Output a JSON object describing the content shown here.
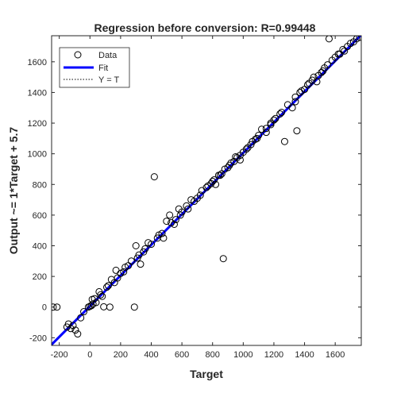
{
  "chart_data": {
    "type": "scatter",
    "title": "Regression before conversion: R=0.99448",
    "xlabel": "Target",
    "ylabel": "Output ~= 1*Target + 5.7",
    "xlim": [
      -250,
      1770
    ],
    "ylim": [
      -250,
      1770
    ],
    "xticks": [
      -200,
      0,
      200,
      400,
      600,
      800,
      1000,
      1200,
      1400,
      1600
    ],
    "yticks": [
      -200,
      0,
      200,
      400,
      600,
      800,
      1000,
      1200,
      1400,
      1600
    ],
    "grid": false,
    "legend_placement": "top-left",
    "fit": {
      "slope": 1,
      "intercept": 5.7
    },
    "series": [
      {
        "name": "Data",
        "marker": "open-circle",
        "color": "#000000",
        "points": [
          [
            -240,
            0
          ],
          [
            -215,
            0
          ],
          [
            -140,
            -110
          ],
          [
            -125,
            -140
          ],
          [
            -110,
            -120
          ],
          [
            -95,
            -150
          ],
          [
            -80,
            -175
          ],
          [
            -150,
            -130
          ],
          [
            -10,
            0
          ],
          [
            0,
            5
          ],
          [
            10,
            10
          ],
          [
            15,
            50
          ],
          [
            30,
            55
          ],
          [
            40,
            30
          ],
          [
            60,
            100
          ],
          [
            80,
            70
          ],
          [
            90,
            2
          ],
          [
            110,
            130
          ],
          [
            130,
            0
          ],
          [
            140,
            180
          ],
          [
            160,
            160
          ],
          [
            170,
            240
          ],
          [
            200,
            220
          ],
          [
            230,
            260
          ],
          [
            270,
            300
          ],
          [
            290,
            0
          ],
          [
            300,
            400
          ],
          [
            320,
            340
          ],
          [
            330,
            280
          ],
          [
            360,
            380
          ],
          [
            380,
            420
          ],
          [
            420,
            850
          ],
          [
            450,
            470
          ],
          [
            480,
            450
          ],
          [
            500,
            560
          ],
          [
            520,
            600
          ],
          [
            550,
            540
          ],
          [
            580,
            640
          ],
          [
            600,
            620
          ],
          [
            630,
            660
          ],
          [
            660,
            700
          ],
          [
            700,
            710
          ],
          [
            730,
            760
          ],
          [
            760,
            780
          ],
          [
            800,
            820
          ],
          [
            820,
            800
          ],
          [
            840,
            860
          ],
          [
            870,
            316
          ],
          [
            880,
            900
          ],
          [
            920,
            940
          ],
          [
            950,
            980
          ],
          [
            980,
            960
          ],
          [
            1000,
            1010
          ],
          [
            1030,
            1040
          ],
          [
            1060,
            1080
          ],
          [
            1090,
            1100
          ],
          [
            1120,
            1160
          ],
          [
            1150,
            1140
          ],
          [
            1180,
            1200
          ],
          [
            1210,
            1230
          ],
          [
            1240,
            1260
          ],
          [
            1270,
            1080
          ],
          [
            1290,
            1320
          ],
          [
            1320,
            1300
          ],
          [
            1340,
            1340
          ],
          [
            1350,
            1150
          ],
          [
            1370,
            1400
          ],
          [
            1400,
            1420
          ],
          [
            1430,
            1460
          ],
          [
            1460,
            1500
          ],
          [
            1490,
            1510
          ],
          [
            1520,
            1540
          ],
          [
            1550,
            1580
          ],
          [
            1560,
            1750
          ],
          [
            1580,
            1610
          ],
          [
            1620,
            1650
          ],
          [
            1650,
            1680
          ],
          [
            1680,
            1700
          ],
          [
            1700,
            1720
          ],
          [
            1720,
            1730
          ],
          [
            1740,
            1750
          ],
          [
            1760,
            1760
          ],
          [
            1420,
            1450
          ],
          [
            1380,
            1410
          ],
          [
            1340,
            1370
          ],
          [
            1250,
            1270
          ],
          [
            1180,
            1190
          ],
          [
            1100,
            1120
          ],
          [
            1050,
            1060
          ],
          [
            980,
            990
          ],
          [
            940,
            950
          ],
          [
            900,
            910
          ],
          [
            860,
            870
          ],
          [
            810,
            830
          ],
          [
            770,
            790
          ],
          [
            720,
            730
          ],
          [
            680,
            690
          ],
          [
            640,
            640
          ],
          [
            590,
            600
          ],
          [
            560,
            570
          ],
          [
            530,
            550
          ],
          [
            470,
            480
          ],
          [
            440,
            450
          ],
          [
            400,
            410
          ],
          [
            350,
            360
          ],
          [
            310,
            320
          ],
          [
            250,
            270
          ],
          [
            220,
            230
          ],
          [
            180,
            190
          ],
          [
            120,
            140
          ],
          [
            70,
            80
          ],
          [
            20,
            20
          ],
          [
            -60,
            -70
          ],
          [
            -40,
            -30
          ],
          [
            1450,
            1480
          ],
          [
            1480,
            1470
          ],
          [
            1510,
            1530
          ],
          [
            1530,
            1560
          ],
          [
            1600,
            1630
          ],
          [
            1630,
            1650
          ],
          [
            1660,
            1670
          ],
          [
            1200,
            1220
          ],
          [
            1150,
            1165
          ],
          [
            1080,
            1095
          ],
          [
            1020,
            1030
          ],
          [
            960,
            975
          ],
          [
            910,
            925
          ],
          [
            850,
            860
          ],
          [
            790,
            805
          ]
        ]
      },
      {
        "name": "Fit",
        "line": "solid",
        "color": "#0000ff"
      },
      {
        "name": "Y = T",
        "line": "dotted",
        "color": "#000000"
      }
    ]
  }
}
